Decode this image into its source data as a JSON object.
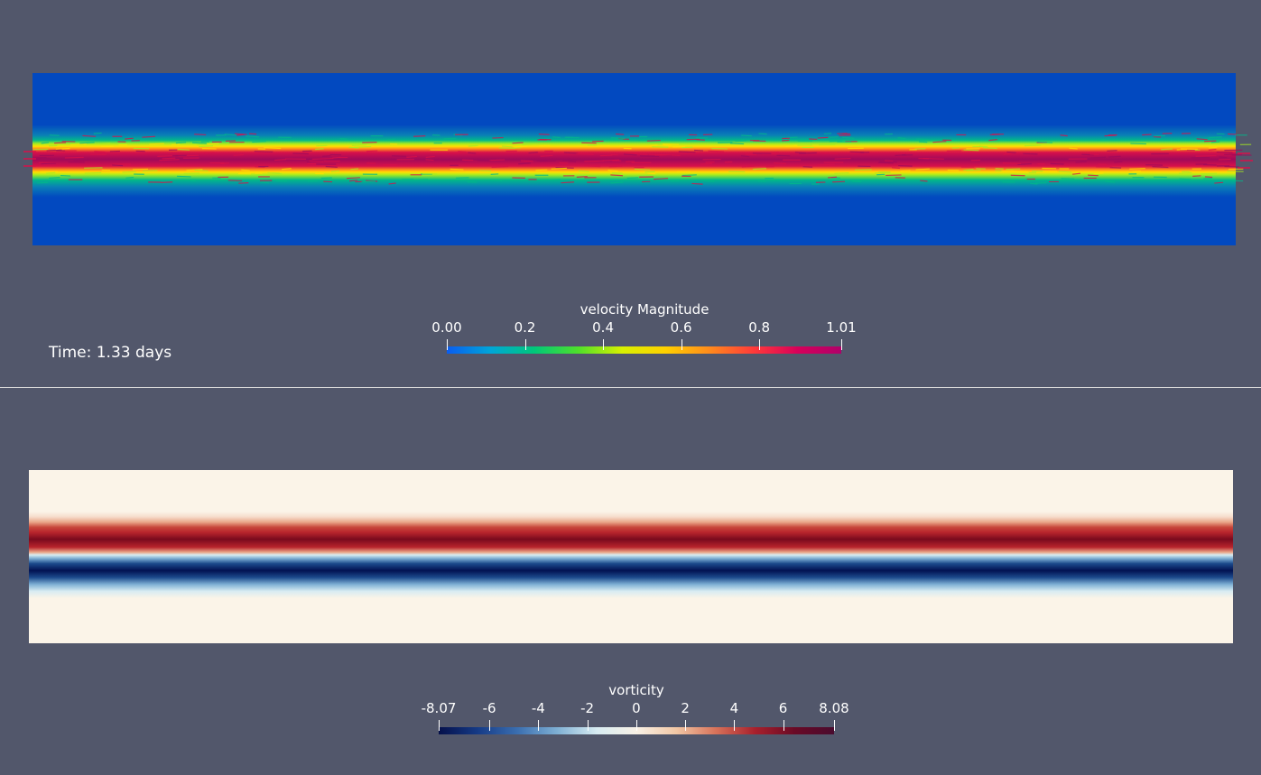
{
  "top_view": {
    "time_annotation": "Time: 1.33 days",
    "colorbar": {
      "title": "velocity Magnitude",
      "min_label": "0.00",
      "max_label": "1.01",
      "range": [
        0.0,
        1.01
      ],
      "ticks": [
        "0.2",
        "0.4",
        "0.6",
        "0.8"
      ],
      "colormap": [
        "#0a5cf0",
        "#00a6d8",
        "#00c87a",
        "#4fe02a",
        "#d8f000",
        "#ffd000",
        "#ff8a1c",
        "#ff3a3a",
        "#d8005a",
        "#b0006a"
      ]
    },
    "field_colors": {
      "background": "#0249c0",
      "edge": "#02b88a",
      "mid": "#a8ec1e",
      "bright": "#ffe000",
      "core": "#d8104a",
      "core_dark": "#a00a5a"
    }
  },
  "bottom_view": {
    "colorbar": {
      "title": "vorticity",
      "min_label": "-8.07",
      "max_label": "8.08",
      "range": [
        -8.07,
        8.08
      ],
      "ticks": [
        "-6",
        "-4",
        "-2",
        "0",
        "2",
        "4",
        "6"
      ],
      "colormap": [
        "#05104a",
        "#163b87",
        "#3b6fb0",
        "#7fb0d4",
        "#d8ecf2",
        "#f8f1e6",
        "#f2c8a6",
        "#d8735a",
        "#a8202c",
        "#6a0a26",
        "#4a0b2e"
      ]
    },
    "field_colors": {
      "background": "#fbf4e8",
      "positive_dark": "#7a0a1e",
      "positive_mid": "#b8242c",
      "positive_light": "#eaa88a",
      "negative_dark": "#021252",
      "negative_mid": "#1c4a8c",
      "negative_light": "#a8d0e2"
    }
  }
}
